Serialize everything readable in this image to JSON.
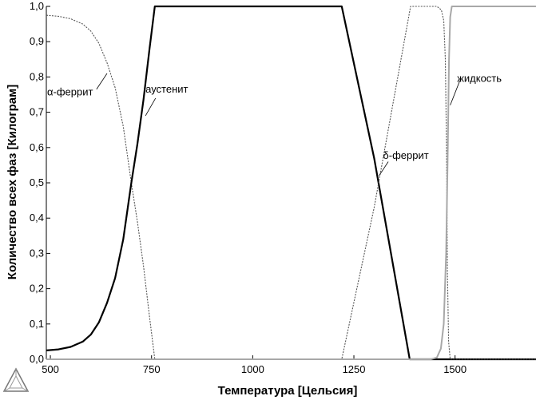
{
  "chart_data": {
    "type": "line",
    "title": "",
    "xlabel": "Температура [Цельсия]",
    "ylabel": "Количество всех фаз [Килограм]",
    "xlim": [
      490,
      1700
    ],
    "ylim": [
      0,
      1.0
    ],
    "x_ticks": [
      500,
      750,
      1000,
      1250,
      1500
    ],
    "y_ticks": [
      0.0,
      0.1,
      0.2,
      0.3,
      0.4,
      0.5,
      0.6,
      0.7,
      0.8,
      0.9,
      1.0
    ],
    "y_tick_labels": [
      "0,0",
      "0,1",
      "0,2",
      "0,3",
      "0,4",
      "0,5",
      "0,6",
      "0,7",
      "0,8",
      "0,9",
      "1,0"
    ],
    "grid": false,
    "legend": "none",
    "series": [
      {
        "name": "α-феррит",
        "style": "dotted",
        "color": "#555555",
        "points": [
          [
            490,
            0.975
          ],
          [
            520,
            0.972
          ],
          [
            550,
            0.965
          ],
          [
            580,
            0.95
          ],
          [
            600,
            0.93
          ],
          [
            620,
            0.895
          ],
          [
            640,
            0.84
          ],
          [
            660,
            0.77
          ],
          [
            680,
            0.66
          ],
          [
            700,
            0.5
          ],
          [
            715,
            0.39
          ],
          [
            730,
            0.265
          ],
          [
            745,
            0.12
          ],
          [
            758,
            0.0
          ],
          [
            1700,
            0.0
          ]
        ]
      },
      {
        "name": "аустенит",
        "style": "solid",
        "color": "#000000",
        "points": [
          [
            490,
            0.025
          ],
          [
            520,
            0.028
          ],
          [
            550,
            0.035
          ],
          [
            580,
            0.05
          ],
          [
            600,
            0.07
          ],
          [
            620,
            0.105
          ],
          [
            640,
            0.16
          ],
          [
            660,
            0.23
          ],
          [
            680,
            0.34
          ],
          [
            700,
            0.5
          ],
          [
            715,
            0.61
          ],
          [
            730,
            0.735
          ],
          [
            745,
            0.88
          ],
          [
            758,
            1.0
          ],
          [
            1220,
            1.0
          ],
          [
            1300,
            0.57
          ],
          [
            1388,
            0.0
          ],
          [
            1700,
            0.0
          ]
        ]
      },
      {
        "name": "δ-феррит",
        "style": "dotted",
        "color": "#555555",
        "points": [
          [
            490,
            0.0
          ],
          [
            1220,
            0.0
          ],
          [
            1300,
            0.43
          ],
          [
            1390,
            1.0
          ],
          [
            1455,
            1.0
          ],
          [
            1466,
            0.99
          ],
          [
            1472,
            0.96
          ],
          [
            1476,
            0.85
          ],
          [
            1479,
            0.6
          ],
          [
            1481,
            0.25
          ],
          [
            1484,
            0.05
          ],
          [
            1488,
            0.0
          ],
          [
            1700,
            0.0
          ]
        ]
      },
      {
        "name": "жидкость",
        "style": "solid",
        "color": "#a8a8a8",
        "points": [
          [
            490,
            0.0
          ],
          [
            1440,
            0.0
          ],
          [
            1455,
            0.005
          ],
          [
            1465,
            0.03
          ],
          [
            1472,
            0.1
          ],
          [
            1478,
            0.3
          ],
          [
            1482,
            0.6
          ],
          [
            1485,
            0.85
          ],
          [
            1488,
            0.97
          ],
          [
            1492,
            1.0
          ],
          [
            1700,
            1.0
          ]
        ]
      }
    ]
  },
  "phase_labels": {
    "alpha_ferrite": "α-феррит",
    "austenite": "аустенит",
    "delta_ferrite": "δ-феррит",
    "liquid": "жидкость"
  }
}
